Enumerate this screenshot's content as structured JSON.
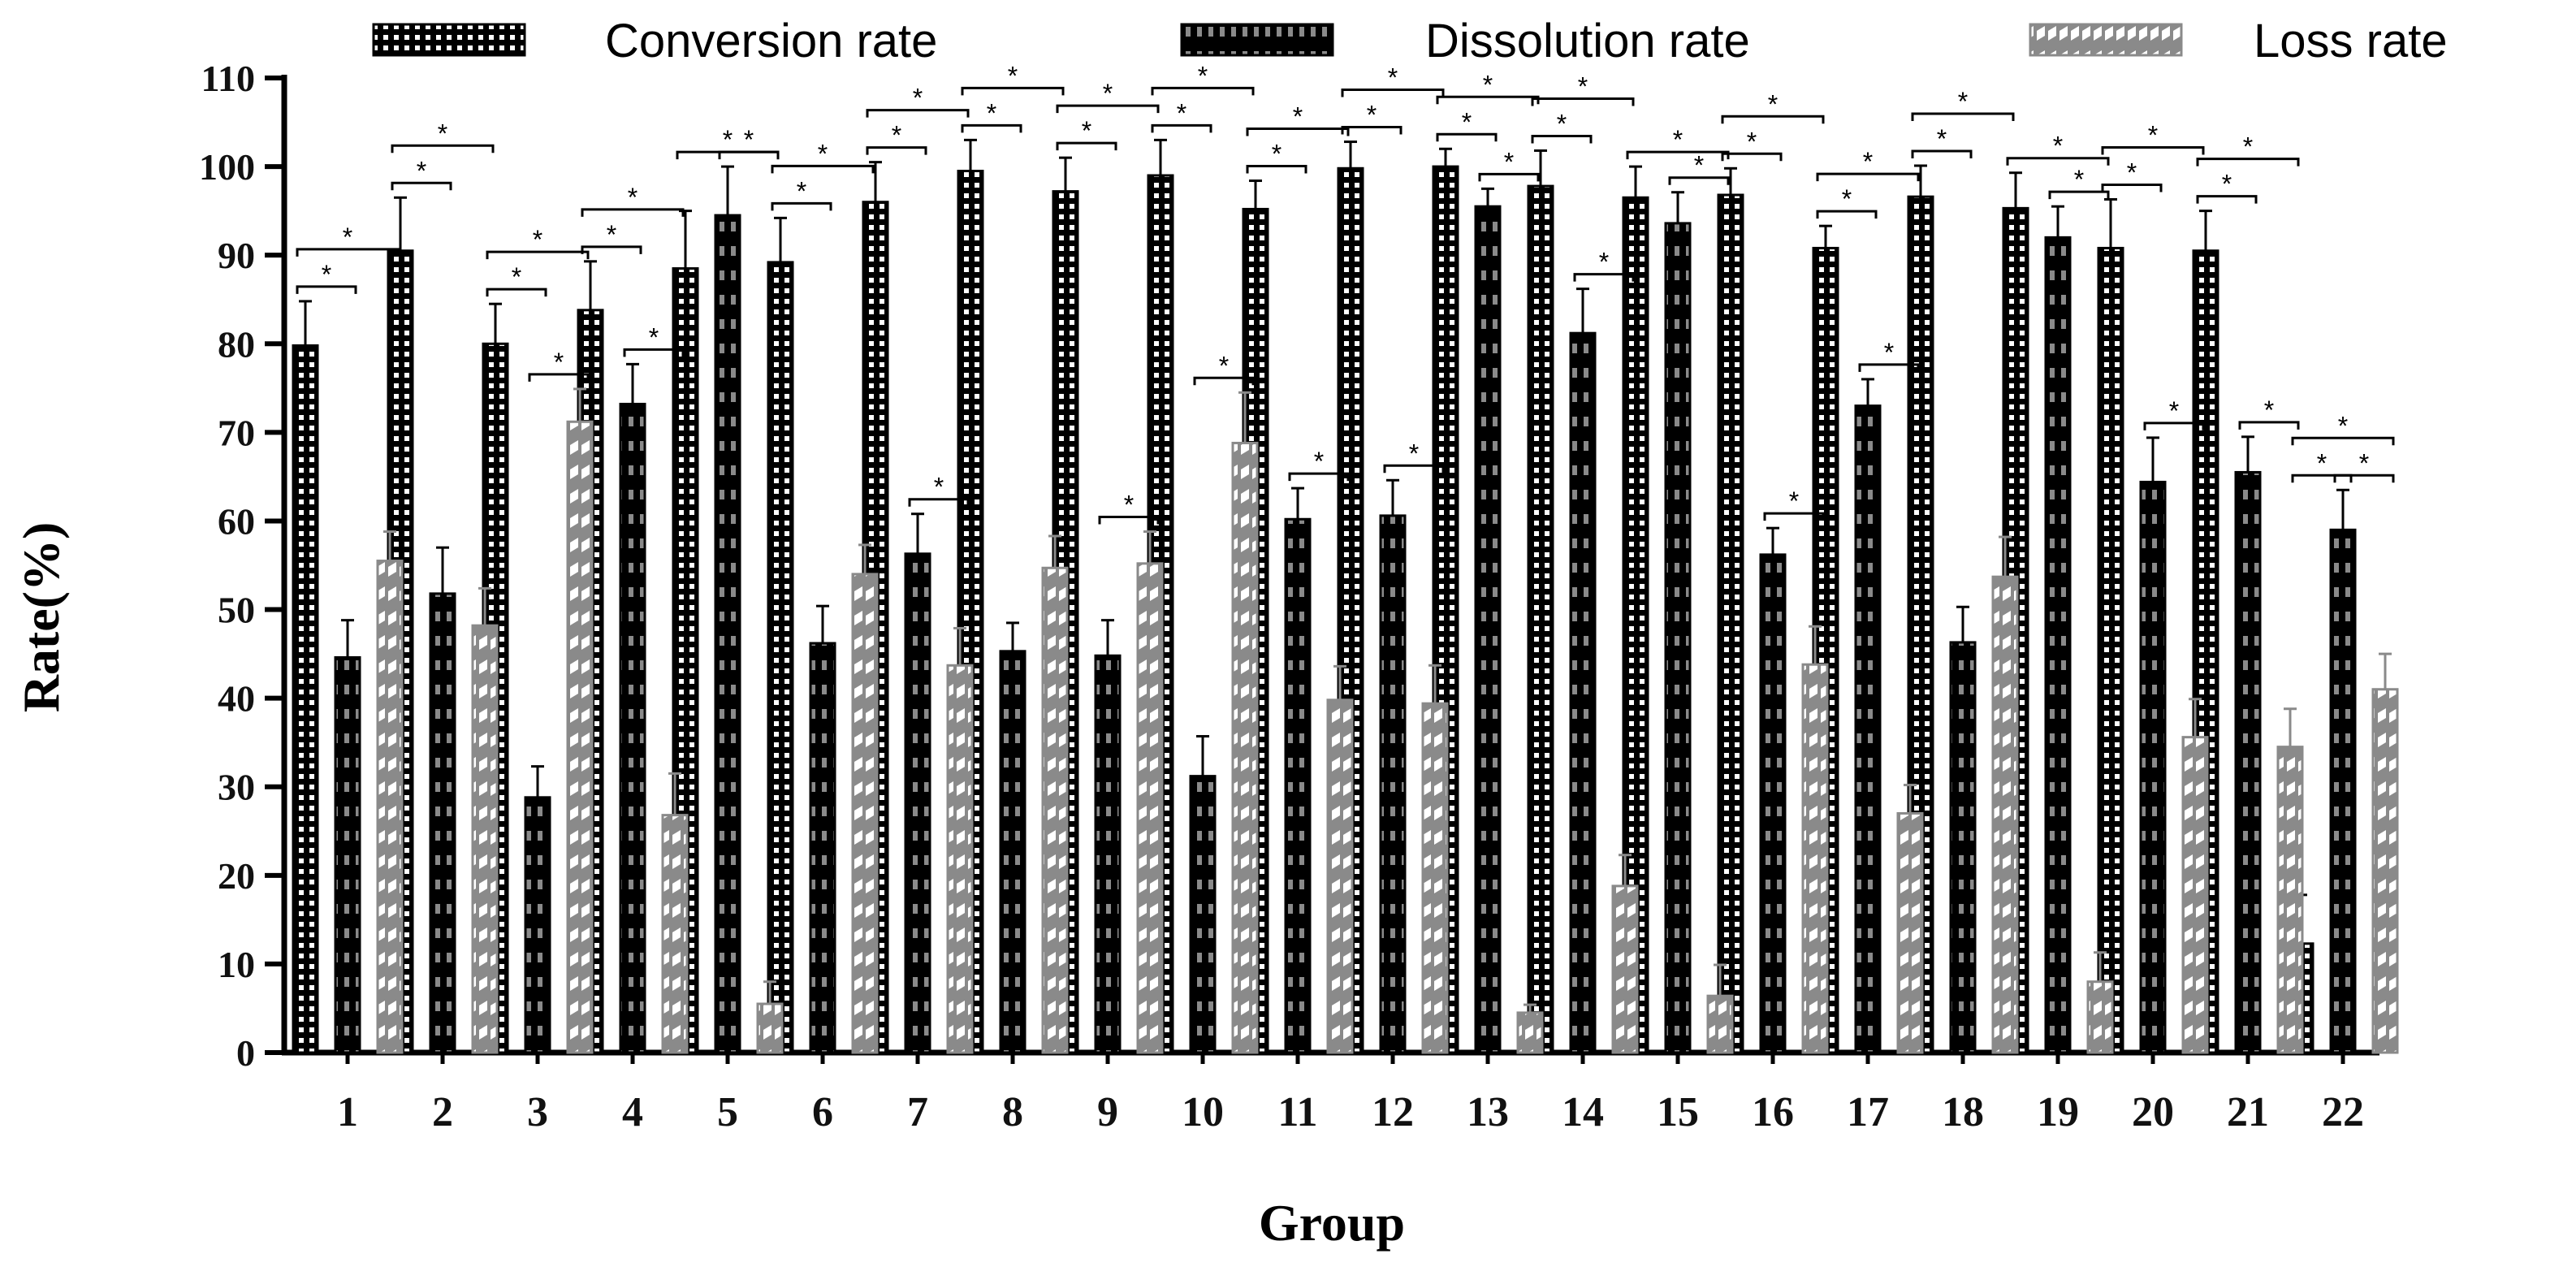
{
  "chart_data": {
    "type": "bar",
    "xlabel": "Group",
    "ylabel": "Rate(%)",
    "ylim": [
      0,
      110
    ],
    "yticks": [
      0,
      10,
      20,
      30,
      40,
      50,
      60,
      70,
      80,
      90,
      100,
      110
    ],
    "grid": false,
    "legend_position": "top",
    "categories": [
      "1",
      "2",
      "3",
      "4",
      "5",
      "6",
      "7",
      "8",
      "9",
      "10",
      "11",
      "12",
      "13",
      "14",
      "15",
      "16",
      "17",
      "18",
      "19",
      "20",
      "21",
      "22"
    ],
    "series": [
      {
        "name": "Conversion rate",
        "pattern": "white-dots-on-black",
        "colors": {
          "fill": "#000000",
          "pattern": "#ffffff"
        },
        "values": [
          79.8,
          90.5,
          80.0,
          83.8,
          88.5,
          89.2,
          96.0,
          99.5,
          97.2,
          99.0,
          95.2,
          99.8,
          100.0,
          97.8,
          96.5,
          96.8,
          90.8,
          96.6,
          95.3,
          90.8,
          90.5,
          12.3
        ],
        "errors": [
          5.0,
          6.0,
          4.5,
          5.5,
          6.5,
          5.0,
          4.5,
          3.5,
          3.8,
          4.0,
          3.2,
          3.0,
          2.0,
          4.0,
          3.5,
          3.0,
          2.5,
          3.5,
          4.0,
          5.5,
          4.5,
          5.5
        ]
      },
      {
        "name": "Dissolution rate",
        "pattern": "black-and-grey-blocks",
        "colors": {
          "fill": "#000000",
          "pattern": "#8a8a8a"
        },
        "values": [
          44.6,
          51.8,
          28.8,
          73.2,
          94.5,
          46.2,
          56.3,
          45.3,
          44.8,
          31.2,
          60.2,
          60.6,
          95.5,
          81.2,
          93.6,
          56.2,
          73.0,
          46.3,
          92.0,
          64.4,
          65.5,
          59.0
        ],
        "errors": [
          4.2,
          5.2,
          3.5,
          4.5,
          5.5,
          4.2,
          4.5,
          3.2,
          4.0,
          4.5,
          3.5,
          4.0,
          2.0,
          5.0,
          3.5,
          3.0,
          3.0,
          4.0,
          3.5,
          5.0,
          4.0,
          4.5
        ]
      },
      {
        "name": "Loss rate",
        "pattern": "grey-and-white-diagonal",
        "colors": {
          "fill": "#8a8a8a",
          "pattern": "#ffffff"
        },
        "values": [
          55.5,
          48.2,
          71.2,
          26.8,
          5.5,
          54.0,
          43.7,
          54.7,
          55.2,
          68.8,
          39.8,
          39.4,
          4.5,
          18.8,
          6.4,
          43.8,
          27.0,
          53.7,
          8.0,
          35.6,
          34.5,
          41.0
        ],
        "errors": [
          3.3,
          4.2,
          3.7,
          4.7,
          2.5,
          3.3,
          4.2,
          3.6,
          3.6,
          5.7,
          3.8,
          4.3,
          0.9,
          3.5,
          3.5,
          4.3,
          3.2,
          4.5,
          3.3,
          4.3,
          4.3,
          4.0
        ]
      }
    ],
    "annotations": {
      "significance_mark": "*",
      "comparisons_by_group": [
        [
          0,
          1
        ],
        [
          0,
          2
        ],
        [
          0,
          1
        ],
        [
          0,
          2
        ],
        [
          0,
          1
        ],
        [
          0,
          2
        ],
        [
          1,
          2
        ],
        [
          0,
          1
        ],
        [
          0,
          2
        ],
        [
          1,
          2
        ],
        [
          0,
          2
        ],
        [
          1,
          2
        ],
        [
          0,
          1
        ],
        [
          0,
          2
        ],
        [
          0,
          1
        ],
        [
          0,
          2
        ],
        [
          1,
          2
        ],
        [
          0,
          1
        ],
        [
          0,
          2
        ],
        [
          0,
          1
        ],
        [
          0,
          2
        ],
        [
          1,
          2
        ],
        [
          0,
          1
        ],
        [
          0,
          2
        ],
        [
          1,
          2
        ],
        [
          0,
          1
        ],
        [
          0,
          2
        ],
        [
          1,
          2
        ],
        [
          0,
          1
        ],
        [
          0,
          2
        ],
        [
          1,
          2
        ],
        [
          0,
          1
        ],
        [
          0,
          2
        ],
        [
          1,
          2
        ],
        [
          0,
          1
        ],
        [
          0,
          2
        ],
        [
          1,
          2
        ],
        [
          0,
          2
        ],
        [
          1,
          2
        ],
        [
          0,
          1
        ],
        [
          0,
          2
        ],
        [
          1,
          2
        ],
        [
          0,
          1
        ],
        [
          0,
          2
        ],
        [
          1,
          2
        ],
        [
          0,
          1
        ],
        [
          0,
          2
        ],
        [
          0,
          2
        ],
        [
          1,
          2
        ],
        [
          0,
          1
        ],
        [
          0,
          2
        ],
        [
          1,
          2
        ],
        [
          0,
          1
        ],
        [
          0,
          2
        ],
        [
          1,
          2
        ],
        [
          0,
          1
        ],
        [
          0,
          2
        ],
        [
          1,
          2
        ]
      ],
      "comparison_groups": [
        1,
        1,
        2,
        2,
        3,
        3,
        3,
        4,
        4,
        4,
        5,
        5,
        6,
        6,
        7,
        7,
        7,
        8,
        8,
        9,
        9,
        9,
        10,
        10,
        10,
        11,
        11,
        11,
        12,
        12,
        12,
        13,
        13,
        13,
        14,
        14,
        14,
        15,
        15,
        16,
        16,
        16,
        17,
        17,
        17,
        18,
        18,
        19,
        19,
        20,
        20,
        20,
        21,
        21,
        21,
        22,
        22,
        22
      ]
    }
  }
}
